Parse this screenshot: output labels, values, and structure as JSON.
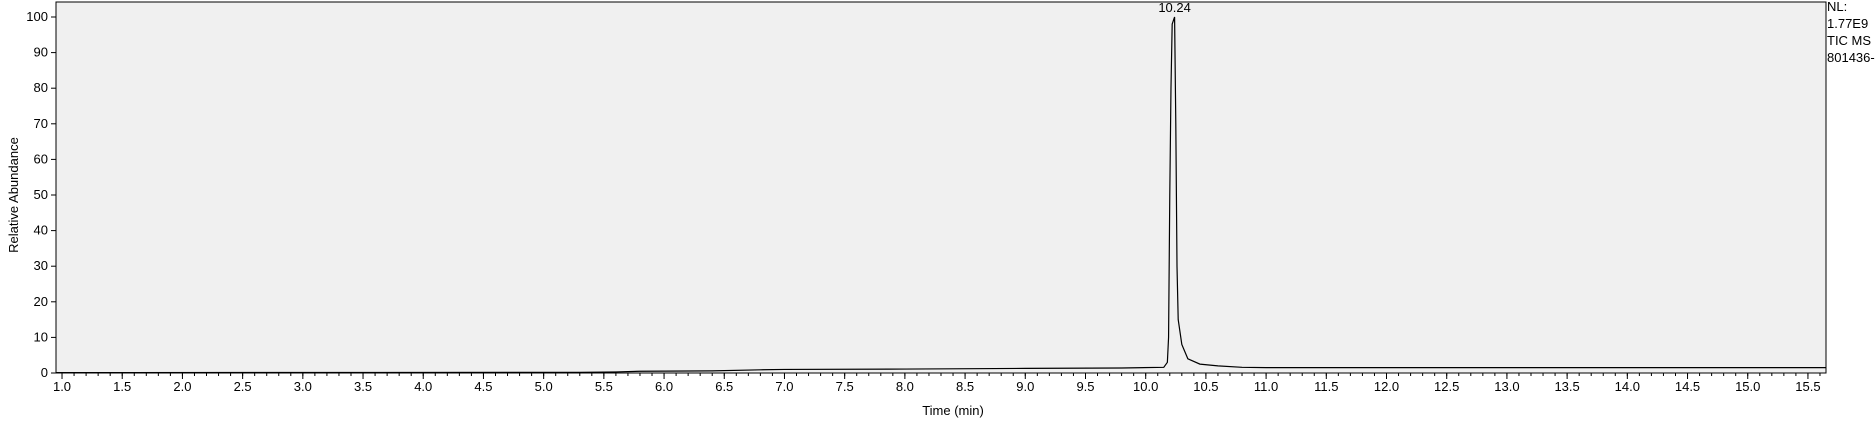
{
  "chart_data": {
    "type": "line",
    "xlabel": "Time (min)",
    "ylabel": "Relative Abundance",
    "xlim": [
      0.95,
      15.65
    ],
    "ylim": [
      0,
      100
    ],
    "x_ticks": [
      1.0,
      1.5,
      2.0,
      2.5,
      3.0,
      3.5,
      4.0,
      4.5,
      5.0,
      5.5,
      6.0,
      6.5,
      7.0,
      7.5,
      8.0,
      8.5,
      9.0,
      9.5,
      10.0,
      10.5,
      11.0,
      11.5,
      12.0,
      12.5,
      13.0,
      13.5,
      14.0,
      14.5,
      15.0,
      15.5
    ],
    "x_tick_labels": [
      "1.0",
      "1.5",
      "2.0",
      "2.5",
      "3.0",
      "3.5",
      "4.0",
      "4.5",
      "5.0",
      "5.5",
      "6.0",
      "6.5",
      "7.0",
      "7.5",
      "8.0",
      "8.5",
      "9.0",
      "9.5",
      "10.0",
      "10.5",
      "11.0",
      "11.5",
      "12.0",
      "12.5",
      "13.0",
      "13.5",
      "14.0",
      "14.5",
      "15.0",
      "15.5"
    ],
    "y_ticks": [
      0,
      10,
      20,
      30,
      40,
      50,
      60,
      70,
      80,
      90,
      100
    ],
    "y_tick_labels": [
      "0",
      "10",
      "20",
      "30",
      "40",
      "50",
      "60",
      "70",
      "80",
      "90",
      "100"
    ],
    "grid": false,
    "plot_background": "#f0f0f0",
    "line_color": "#000000",
    "peak_labels": [
      {
        "x": 10.24,
        "y": 100,
        "text": "10.24"
      }
    ],
    "side_info": [
      "NL:",
      "1.77E9",
      "TIC  MS",
      "801436-"
    ],
    "series": [
      {
        "points": [
          [
            0.95,
            0.1
          ],
          [
            5.3,
            0.2
          ],
          [
            5.6,
            0.3
          ],
          [
            5.8,
            0.5
          ],
          [
            6.4,
            0.6
          ],
          [
            6.8,
            0.9
          ],
          [
            7.0,
            1.0
          ],
          [
            8.0,
            1.1
          ],
          [
            9.0,
            1.3
          ],
          [
            9.8,
            1.4
          ],
          [
            10.15,
            1.6
          ],
          [
            10.18,
            3
          ],
          [
            10.19,
            10
          ],
          [
            10.2,
            50
          ],
          [
            10.21,
            80
          ],
          [
            10.22,
            98
          ],
          [
            10.24,
            100
          ],
          [
            10.25,
            70
          ],
          [
            10.26,
            30
          ],
          [
            10.27,
            15
          ],
          [
            10.3,
            8
          ],
          [
            10.35,
            4
          ],
          [
            10.45,
            2.5
          ],
          [
            10.6,
            2.0
          ],
          [
            10.8,
            1.6
          ],
          [
            11.0,
            1.5
          ],
          [
            15.65,
            1.5
          ]
        ]
      }
    ]
  }
}
